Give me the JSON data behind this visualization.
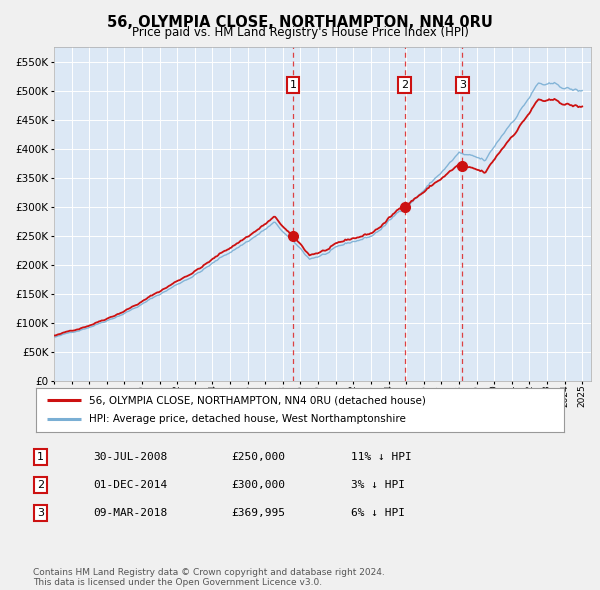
{
  "title": "56, OLYMPIA CLOSE, NORTHAMPTON, NN4 0RU",
  "subtitle": "Price paid vs. HM Land Registry's House Price Index (HPI)",
  "ylim": [
    0,
    575000
  ],
  "yticks": [
    0,
    50000,
    100000,
    150000,
    200000,
    250000,
    300000,
    350000,
    400000,
    450000,
    500000,
    550000
  ],
  "fig_bg_color": "#f0f0f0",
  "plot_bg_color": "#dce8f5",
  "grid_color": "#ffffff",
  "hpi_color": "#7aafd4",
  "price_color": "#cc1111",
  "sale_points": [
    {
      "date_num": 2008.58,
      "price": 250000,
      "label": "1"
    },
    {
      "date_num": 2014.92,
      "price": 300000,
      "label": "2"
    },
    {
      "date_num": 2018.19,
      "price": 369995,
      "label": "3"
    }
  ],
  "legend_entries": [
    {
      "label": "56, OLYMPIA CLOSE, NORTHAMPTON, NN4 0RU (detached house)",
      "color": "#cc1111"
    },
    {
      "label": "HPI: Average price, detached house, West Northamptonshire",
      "color": "#7aafd4"
    }
  ],
  "table_rows": [
    {
      "num": "1",
      "date": "30-JUL-2008",
      "price": "£250,000",
      "hpi": "11% ↓ HPI"
    },
    {
      "num": "2",
      "date": "01-DEC-2014",
      "price": "£300,000",
      "hpi": "3% ↓ HPI"
    },
    {
      "num": "3",
      "date": "09-MAR-2018",
      "price": "£369,995",
      "hpi": "6% ↓ HPI"
    }
  ],
  "footer": "Contains HM Land Registry data © Crown copyright and database right 2024.\nThis data is licensed under the Open Government Licence v3.0.",
  "xmin": 1995.0,
  "xmax": 2025.5
}
